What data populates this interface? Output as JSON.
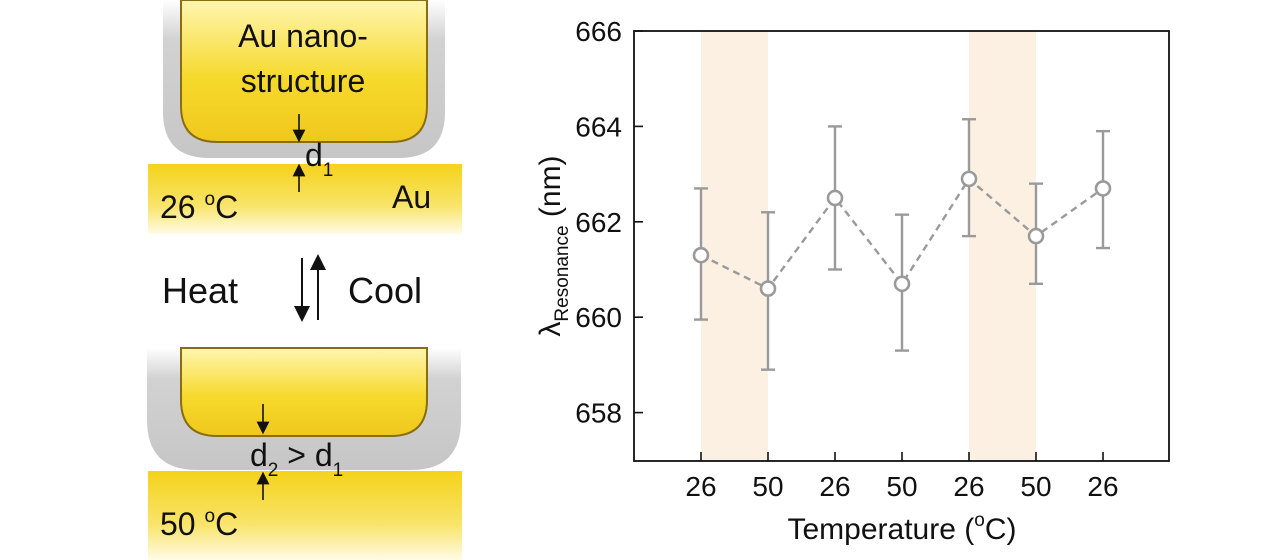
{
  "schematic": {
    "top_label_line1": "Au nano-",
    "top_label_line2": "structure",
    "gap_top_main": "d",
    "gap_top_sub": "1",
    "temp_top_value": "26 ",
    "temp_top_deg": "o",
    "temp_top_unit": "C",
    "substrate_label": "Au",
    "heat_label": "Heat",
    "cool_label": "Cool",
    "gap_bottom_main": "d",
    "gap_bottom_sub": "2",
    "gap_bottom_mid": " > d",
    "gap_bottom_sub2": "1",
    "temp_bottom_value": "50 ",
    "temp_bottom_deg": "o",
    "temp_bottom_unit": "C",
    "colors": {
      "gold": "#f5d72a",
      "gold_edge": "#8a6d10",
      "shell": "#c8c8c8"
    }
  },
  "chart_data": {
    "type": "scatter",
    "categories": [
      "26",
      "50",
      "26",
      "50",
      "26",
      "50",
      "26"
    ],
    "values": [
      661.3,
      660.6,
      662.5,
      660.7,
      662.9,
      661.7,
      662.7
    ],
    "error_low": [
      659.95,
      658.9,
      661.0,
      659.3,
      661.7,
      660.7,
      661.45
    ],
    "error_high": [
      662.7,
      662.2,
      664.0,
      662.15,
      664.15,
      662.8,
      663.9
    ],
    "ylim": [
      657,
      666
    ],
    "yticks": [
      658,
      660,
      662,
      664,
      666
    ],
    "ylabel_main": "λ",
    "ylabel_sub": "Resonance",
    "ylabel_unit": " (nm)",
    "xlabel_main": "Temperature (",
    "xlabel_deg": "o",
    "xlabel_end": "C)",
    "shaded_bands": [
      [
        0,
        1
      ],
      [
        4,
        5
      ]
    ],
    "colors": {
      "series": "#9a9a9a",
      "band": "#fcf0e2",
      "axis": "#111111"
    }
  }
}
